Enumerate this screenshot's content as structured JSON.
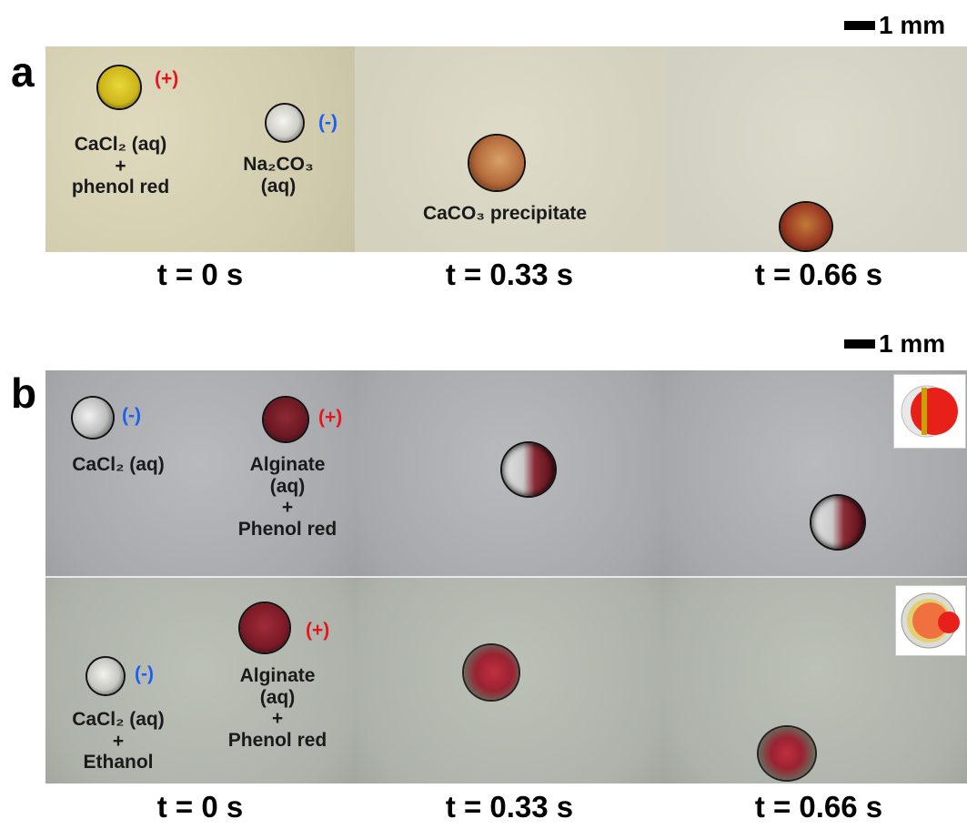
{
  "figure": {
    "a": {
      "letter": "a",
      "scale_label": "1 mm",
      "labels": {
        "cacl2_phenol": "CaCl₂ (aq)\n+\nphenol red",
        "na2co3": "Na₂CO₃\n(aq)",
        "precipitate": "CaCO₃ precipitate",
        "plus": "(+)",
        "minus": "(-)"
      },
      "times": [
        "t = 0 s",
        "t = 0.33 s",
        "t = 0.66 s"
      ]
    },
    "b": {
      "letter": "b",
      "scale_label": "1 mm",
      "row1": {
        "cacl2": "CaCl₂ (aq)",
        "alginate": "Alginate\n(aq)\n+\nPhenol red",
        "plus": "(+)",
        "minus": "(-)"
      },
      "row2": {
        "cacl2_ethanol": "CaCl₂ (aq)\n+\nEthanol",
        "alginate": "Alginate\n(aq)\n+\nPhenol red",
        "plus": "(+)",
        "minus": "(-)"
      },
      "times": [
        "t = 0 s",
        "t = 0.33 s",
        "t = 0.66 s"
      ]
    }
  },
  "colors": {
    "plus": "#e8141b",
    "minus": "#1a5ff0",
    "yellow_drop": "#d9c21a",
    "red_drop": "#b3242c",
    "precipitate": "#a8532c"
  }
}
